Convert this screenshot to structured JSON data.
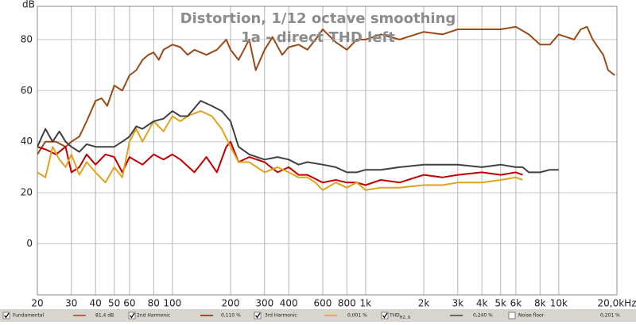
{
  "chart_data": {
    "type": "line",
    "title": "Distortion, 1/12 octave smoothing",
    "subtitle": "1a - direct THD left",
    "y_label": "dB",
    "log_x": true,
    "grid": true,
    "xlim": [
      20,
      20000
    ],
    "ylim": [
      -20,
      93
    ],
    "xticks": [
      20,
      30,
      40,
      50,
      60,
      80,
      100,
      200,
      300,
      400,
      600,
      800,
      {
        "value": 1000,
        "label": "1k"
      },
      {
        "value": 2000,
        "label": "2k"
      },
      {
        "value": 3000,
        "label": "3k"
      },
      {
        "value": 4000,
        "label": "4k"
      },
      {
        "value": 5000,
        "label": "5k"
      },
      {
        "value": 6000,
        "label": "6k"
      },
      {
        "value": 8000,
        "label": "8k"
      },
      {
        "value": 10000,
        "label": "10k"
      },
      {
        "value": 20000,
        "label": "20,0kHz"
      }
    ],
    "yticks": [
      0,
      20,
      40,
      60,
      80
    ],
    "series": [
      {
        "name": "Fundamental",
        "color": "#9a4a17",
        "x": [
          20,
          22,
          25,
          28,
          30,
          33,
          36,
          40,
          43,
          46,
          50,
          55,
          60,
          65,
          70,
          75,
          80,
          85,
          90,
          100,
          110,
          120,
          130,
          150,
          170,
          190,
          200,
          220,
          250,
          270,
          300,
          330,
          370,
          400,
          450,
          500,
          550,
          600,
          700,
          800,
          900,
          1000,
          1200,
          1500,
          2000,
          2500,
          3000,
          4000,
          5000,
          6000,
          7000,
          8000,
          9000,
          10000,
          12000,
          13000,
          14000,
          15000,
          17000,
          18000,
          19500
        ],
        "values": [
          35,
          40,
          40,
          38,
          40,
          42,
          48,
          56,
          57,
          54,
          62,
          60,
          66,
          68,
          72,
          74,
          75,
          72,
          76,
          78,
          77,
          74,
          76,
          74,
          76,
          80,
          76,
          72,
          80,
          68,
          76,
          81,
          74,
          77,
          78,
          76,
          80,
          84,
          79,
          76,
          80,
          80,
          82,
          80,
          83,
          82,
          84,
          84,
          84,
          85,
          82,
          78,
          78,
          82,
          80,
          84,
          85,
          80,
          74,
          68,
          66
        ]
      },
      {
        "name": "2nd Harmonic",
        "color": "#c00000",
        "x": [
          20,
          22,
          25,
          28,
          30,
          33,
          36,
          40,
          45,
          50,
          55,
          60,
          70,
          80,
          90,
          100,
          110,
          130,
          150,
          170,
          190,
          200,
          220,
          250,
          300,
          350,
          400,
          450,
          500,
          600,
          700,
          800,
          900,
          1000,
          1200,
          1500,
          2000,
          2500,
          3000,
          4000,
          5000,
          6000,
          6500
        ],
        "values": [
          38,
          37,
          35,
          38,
          28,
          30,
          35,
          31,
          35,
          34,
          28,
          34,
          31,
          35,
          33,
          35,
          33,
          28,
          34,
          28,
          38,
          40,
          32,
          34,
          32,
          28,
          30,
          27,
          27,
          24,
          25,
          24,
          24,
          23,
          25,
          24,
          27,
          26,
          27,
          28,
          27,
          28,
          27
        ]
      },
      {
        "name": "3rd Harmonic",
        "color": "#e2a21c",
        "x": [
          20,
          22,
          24,
          26,
          28,
          30,
          33,
          36,
          40,
          45,
          50,
          55,
          60,
          65,
          70,
          80,
          90,
          100,
          110,
          120,
          140,
          160,
          180,
          200,
          220,
          250,
          300,
          350,
          400,
          450,
          500,
          550,
          600,
          700,
          800,
          900,
          1000,
          1200,
          1500,
          2000,
          2500,
          3000,
          4000,
          5000,
          6000,
          6500
        ],
        "values": [
          28,
          26,
          38,
          33,
          30,
          35,
          27,
          32,
          28,
          24,
          30,
          26,
          40,
          45,
          40,
          48,
          44,
          50,
          48,
          50,
          52,
          50,
          45,
          38,
          32,
          32,
          28,
          30,
          28,
          26,
          26,
          24,
          21,
          24,
          22,
          24,
          21,
          22,
          22,
          23,
          23,
          24,
          24,
          25,
          26,
          25
        ]
      },
      {
        "name": "THD",
        "color": "#404040",
        "x": [
          20,
          22,
          24,
          26,
          28,
          30,
          33,
          36,
          40,
          45,
          50,
          55,
          60,
          65,
          70,
          80,
          90,
          100,
          110,
          120,
          140,
          160,
          180,
          200,
          220,
          250,
          300,
          350,
          400,
          450,
          500,
          600,
          700,
          800,
          900,
          1000,
          1200,
          1500,
          2000,
          2500,
          3000,
          4000,
          5000,
          6000,
          6500,
          7000,
          8000,
          9000,
          10000
        ],
        "values": [
          38,
          45,
          40,
          44,
          40,
          38,
          36,
          39,
          38,
          38,
          38,
          40,
          42,
          46,
          45,
          48,
          49,
          52,
          50,
          50,
          56,
          54,
          52,
          48,
          38,
          35,
          33,
          34,
          33,
          31,
          32,
          31,
          30,
          28,
          28,
          29,
          29,
          30,
          31,
          31,
          31,
          30,
          31,
          30,
          30,
          28,
          28,
          29,
          29
        ]
      }
    ],
    "legend": [
      {
        "name": "Fundamental",
        "readout": "81,4 dB",
        "checked": true,
        "series": 0
      },
      {
        "name": "2nd Harmonic",
        "readout": "0,110 %",
        "checked": true,
        "series": 1
      },
      {
        "name": "3rd Harmonic",
        "readout": "0,001 %",
        "checked": true,
        "series": 2
      },
      {
        "name": "THD",
        "sub": "H2..9",
        "readout": "0,240 %",
        "checked": true,
        "series": 3
      },
      {
        "name": "Noise floor",
        "readout": "0,201 %",
        "checked": false
      }
    ]
  }
}
